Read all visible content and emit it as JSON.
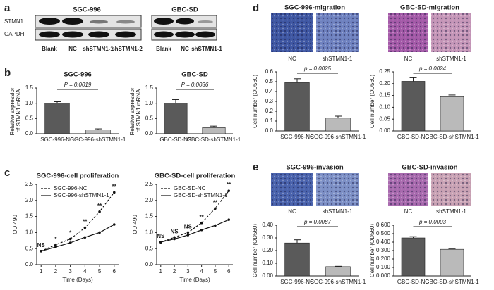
{
  "panel_labels": [
    "a",
    "b",
    "c",
    "d",
    "e"
  ],
  "blot": {
    "cell_lines": [
      "SGC-996",
      "GBC-SD"
    ],
    "proteins": [
      "STMN1",
      "GAPDH"
    ],
    "lanes": [
      [
        "Blank",
        "NC",
        "shSTMN1-1",
        "shSTMN1-2"
      ],
      [
        "Blank",
        "NC",
        "shSTMN1-1"
      ]
    ]
  },
  "chart_data": [
    {
      "type": "bar",
      "title": "SGC-996",
      "categories": [
        "SGC-996-NC",
        "SGC-996-shSTMN1-1"
      ],
      "values": [
        1.0,
        0.13
      ],
      "errors": [
        0.05,
        0.03
      ],
      "colors": [
        "#5a5a5a",
        "#bababa"
      ],
      "ylabel": [
        "Relative expression",
        "of STMN1 mRNA"
      ],
      "ylim": [
        0,
        1.5
      ],
      "yticks": [
        {
          "value": 0,
          "label": "0.0"
        },
        {
          "value": 0.5,
          "label": "0.5"
        },
        {
          "value": 1,
          "label": "1.0"
        },
        {
          "value": 1.5,
          "label": "1.5"
        }
      ],
      "annotation": "P = 0.0019"
    },
    {
      "type": "bar",
      "title": "GBC-SD",
      "categories": [
        "GBC-SD-NC",
        "GBC-SD-shSTMN1-1"
      ],
      "values": [
        1.0,
        0.2
      ],
      "errors": [
        0.12,
        0.05
      ],
      "colors": [
        "#5a5a5a",
        "#bababa"
      ],
      "ylabel": [
        "Relative expression",
        "of STMN1 mRNA"
      ],
      "ylim": [
        0,
        1.5
      ],
      "yticks": [
        {
          "value": 0,
          "label": "0.0"
        },
        {
          "value": 0.5,
          "label": "0.5"
        },
        {
          "value": 1,
          "label": "1.0"
        },
        {
          "value": 1.5,
          "label": "1.5"
        }
      ],
      "annotation": "P = 0.0036"
    },
    {
      "type": "line",
      "title": "SGC-996-cell proliferation",
      "x": [
        1,
        2,
        3,
        4,
        5,
        6
      ],
      "xlim": [
        0.7,
        6.3
      ],
      "xticks": [
        1,
        2,
        3,
        4,
        5,
        6
      ],
      "ylim": [
        0,
        2.5
      ],
      "yticks": [
        {
          "value": 0,
          "label": "0.0"
        },
        {
          "value": 0.5,
          "label": "0.5"
        },
        {
          "value": 1,
          "label": "1.0"
        },
        {
          "value": 1.5,
          "label": "1.5"
        },
        {
          "value": 2,
          "label": "2.0"
        },
        {
          "value": 2.5,
          "label": "2.5"
        }
      ],
      "xlabel": "Time (Days)",
      "ylabel": "OD 490",
      "legend": "upper left",
      "series": [
        {
          "name": "SGC-996-NC",
          "color": "#111111",
          "dashed": true,
          "values": [
            0.42,
            0.62,
            0.8,
            1.15,
            1.65,
            2.25
          ]
        },
        {
          "name": "SGC-996-shSTMN1-1",
          "color": "#111111",
          "dashed": false,
          "values": [
            0.42,
            0.55,
            0.68,
            0.85,
            1.0,
            1.25
          ]
        }
      ],
      "annotations": [
        "NS",
        "*",
        "*",
        "**",
        "**",
        "**"
      ]
    },
    {
      "type": "line",
      "title": "GBC-SD-cell proliferation",
      "x": [
        1,
        2,
        3,
        4,
        5,
        6
      ],
      "xlim": [
        0.7,
        6.3
      ],
      "xticks": [
        1,
        2,
        3,
        4,
        5,
        6
      ],
      "ylim": [
        0,
        2.5
      ],
      "yticks": [
        {
          "value": 0,
          "label": "0.0"
        },
        {
          "value": 0.5,
          "label": "0.5"
        },
        {
          "value": 1,
          "label": "1.0"
        },
        {
          "value": 1.5,
          "label": "1.5"
        },
        {
          "value": 2,
          "label": "2.0"
        },
        {
          "value": 2.5,
          "label": "2.5"
        }
      ],
      "xlabel": "Time (Days)",
      "ylabel": "OD 490",
      "legend": "upper left",
      "series": [
        {
          "name": "GBC-SD-NC",
          "color": "#111111",
          "dashed": true,
          "values": [
            0.7,
            0.85,
            1.0,
            1.3,
            1.75,
            2.3
          ]
        },
        {
          "name": "GBC-SD-shSTMN1-1",
          "color": "#111111",
          "dashed": false,
          "values": [
            0.7,
            0.8,
            0.92,
            1.08,
            1.22,
            1.4
          ]
        }
      ],
      "annotations": [
        "NS",
        "NS",
        "NS",
        "**",
        "**",
        "**"
      ]
    },
    {
      "type": "bar",
      "title": "SGC-996-migration",
      "image_labels": [
        "NC",
        "shSTMN1-1"
      ],
      "image_colors": [
        "#3f57a3",
        "#6f82c0"
      ],
      "categories": [
        "SGC-996-NC",
        "SGC-996-shSTMN1-1"
      ],
      "values": [
        0.49,
        0.13
      ],
      "errors": [
        0.04,
        0.02
      ],
      "colors": [
        "#5a5a5a",
        "#bababa"
      ],
      "ylabel": "Cell number (OD560)",
      "ylim": [
        0,
        0.6
      ],
      "yticks": [
        {
          "value": 0,
          "label": "0.0"
        },
        {
          "value": 0.1,
          "label": "0.1"
        },
        {
          "value": 0.2,
          "label": "0.2"
        },
        {
          "value": 0.3,
          "label": "0.3"
        },
        {
          "value": 0.4,
          "label": "0.4"
        },
        {
          "value": 0.5,
          "label": "0.5"
        },
        {
          "value": 0.6,
          "label": "0.6"
        }
      ],
      "annotation": "p = 0.0025"
    },
    {
      "type": "bar",
      "title": "GBC-SD-migration",
      "image_labels": [
        "NC",
        "shSTMN1-1"
      ],
      "image_colors": [
        "#a45aa8",
        "#c596b8"
      ],
      "categories": [
        "GBC-SD-NC",
        "GBC-SD-shSTMN1-1"
      ],
      "values": [
        0.21,
        0.145
      ],
      "errors": [
        0.015,
        0.007
      ],
      "colors": [
        "#5a5a5a",
        "#bababa"
      ],
      "ylabel": "Cell number (OD560)",
      "ylim": [
        0,
        0.25
      ],
      "yticks": [
        {
          "value": 0,
          "label": "0.00"
        },
        {
          "value": 0.05,
          "label": "0.05"
        },
        {
          "value": 0.1,
          "label": "0.10"
        },
        {
          "value": 0.15,
          "label": "0.15"
        },
        {
          "value": 0.2,
          "label": "0.20"
        },
        {
          "value": 0.25,
          "label": "0.25"
        }
      ],
      "annotation": "p = 0.0024"
    },
    {
      "type": "bar",
      "title": "SGC-996-invasion",
      "image_labels": [
        "NC",
        "shSTMN1-1"
      ],
      "image_colors": [
        "#4a63ad",
        "#7d90c6"
      ],
      "categories": [
        "SGC-996-NC",
        "SGC-996-shSTMN1-1"
      ],
      "values": [
        0.26,
        0.073
      ],
      "errors": [
        0.025,
        0.003
      ],
      "colors": [
        "#5a5a5a",
        "#bababa"
      ],
      "ylabel": "Cell number (OD560)",
      "ylim": [
        0,
        0.4
      ],
      "yticks": [
        {
          "value": 0,
          "label": "0.00"
        },
        {
          "value": 0.1,
          "label": "0.10"
        },
        {
          "value": 0.2,
          "label": "0.20"
        },
        {
          "value": 0.3,
          "label": "0.30"
        },
        {
          "value": 0.4,
          "label": "0.40"
        }
      ],
      "annotation": "p = 0.0087"
    },
    {
      "type": "bar",
      "title": "GBC-SD-invasion",
      "image_labels": [
        "NC",
        "shSTMN1-1"
      ],
      "image_colors": [
        "#a86aae",
        "#c9a2b4"
      ],
      "categories": [
        "GBC-SD-NC",
        "GBC-SD-shSTMN1-1"
      ],
      "values": [
        0.45,
        0.315
      ],
      "errors": [
        0.015,
        0.008
      ],
      "colors": [
        "#5a5a5a",
        "#bababa"
      ],
      "ylabel": "Cell number (OD560)",
      "ylim": [
        0,
        0.6
      ],
      "yticks": [
        {
          "value": 0,
          "label": "0.000"
        },
        {
          "value": 0.1,
          "label": "0.100"
        },
        {
          "value": 0.2,
          "label": "0.200"
        },
        {
          "value": 0.3,
          "label": "0.300"
        },
        {
          "value": 0.4,
          "label": "0.400"
        },
        {
          "value": 0.5,
          "label": "0.500"
        },
        {
          "value": 0.6,
          "label": "0.600"
        }
      ],
      "annotation": "p = 0.0003"
    }
  ]
}
